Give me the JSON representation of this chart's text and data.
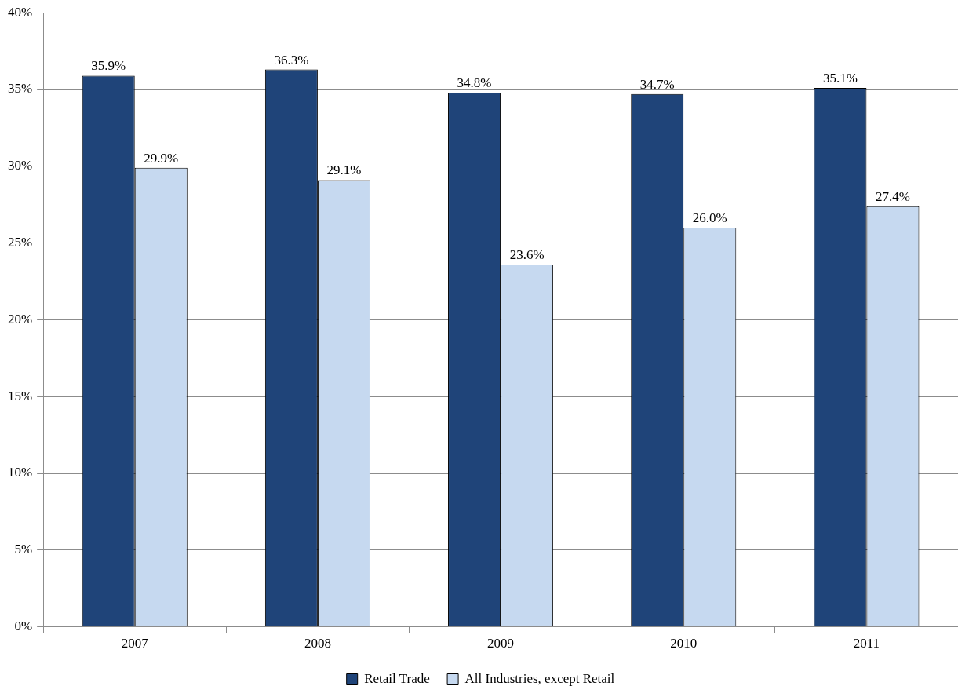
{
  "chart_data": {
    "type": "bar",
    "categories": [
      "2007",
      "2008",
      "2009",
      "2010",
      "2011"
    ],
    "series": [
      {
        "name": "Retail Trade",
        "color": "#1f4479",
        "values": [
          35.9,
          36.3,
          34.8,
          34.7,
          35.1
        ],
        "value_labels": [
          "35.9%",
          "36.3%",
          "34.8%",
          "34.7%",
          "35.1%"
        ]
      },
      {
        "name": "All Industries, except Retail",
        "color": "#c6d9f0",
        "values": [
          29.9,
          29.1,
          23.6,
          26.0,
          27.4
        ],
        "value_labels": [
          "29.9%",
          "29.1%",
          "23.6%",
          "26.0%",
          "27.4%"
        ]
      }
    ],
    "ylim": [
      0,
      40
    ],
    "yticks": [
      {
        "value": 0,
        "label": "0%"
      },
      {
        "value": 5,
        "label": "5%"
      },
      {
        "value": 10,
        "label": "10%"
      },
      {
        "value": 15,
        "label": "15%"
      },
      {
        "value": 20,
        "label": "20%"
      },
      {
        "value": 25,
        "label": "25%"
      },
      {
        "value": 30,
        "label": "30%"
      },
      {
        "value": 35,
        "label": "35%"
      },
      {
        "value": 40,
        "label": "40%"
      }
    ],
    "grid": "y",
    "legend": "bottom"
  }
}
